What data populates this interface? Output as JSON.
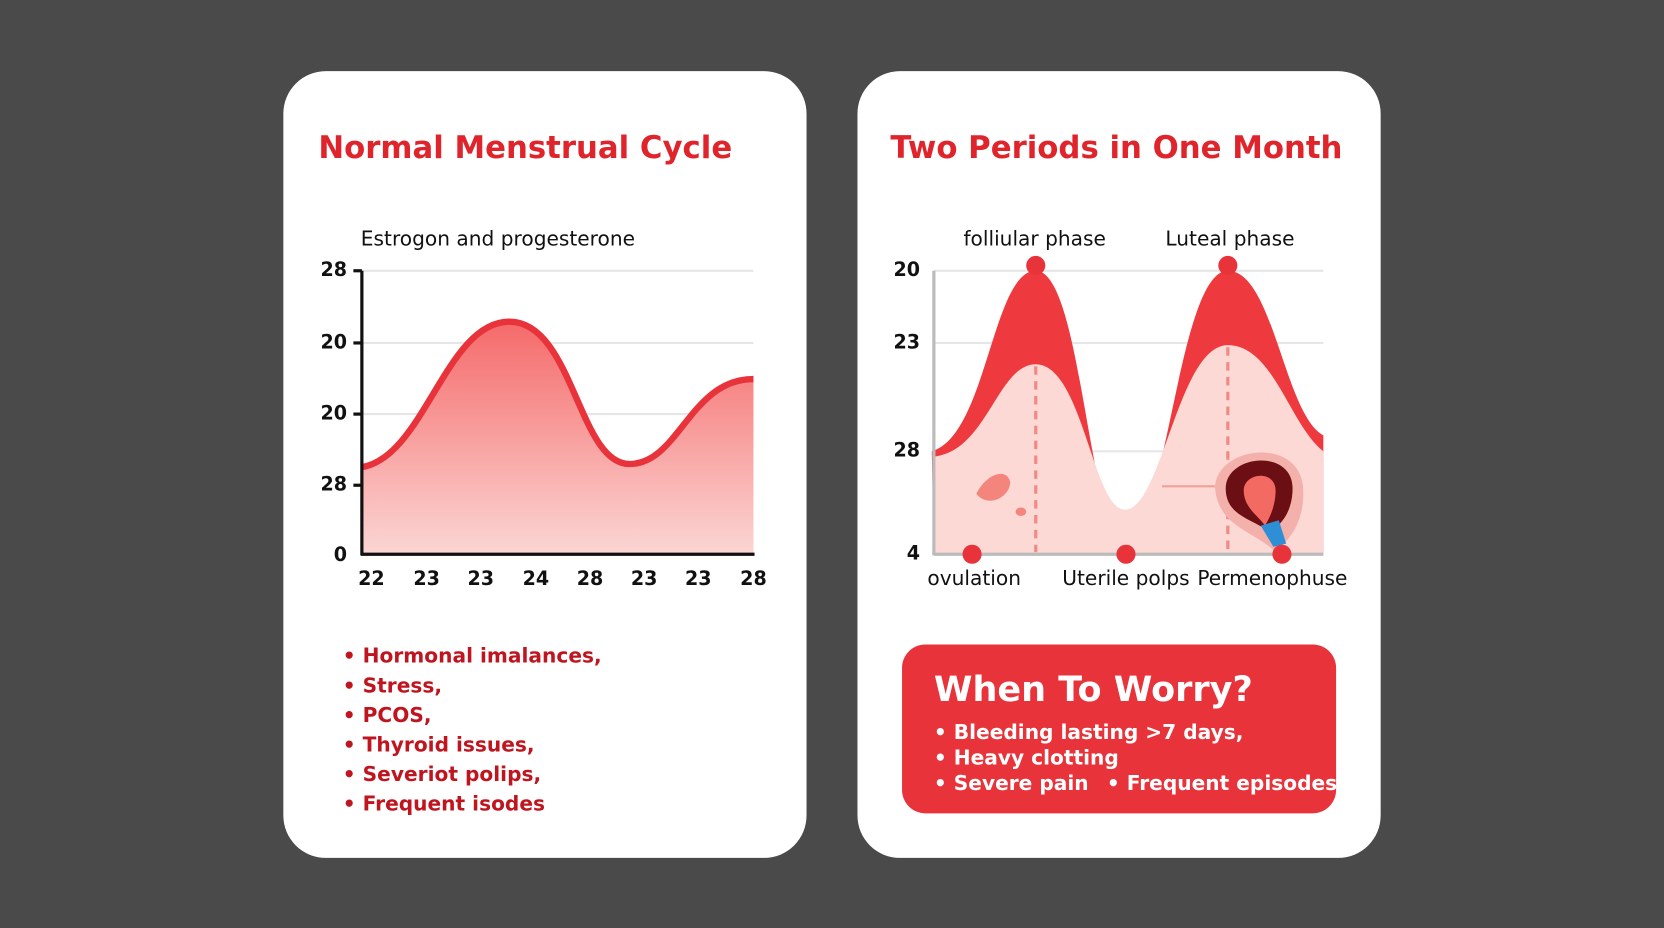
{
  "left_card": {
    "title": "Normal Menstrual Cycle",
    "chart_label": "Estrogon and progesterone",
    "y_labels": [
      "28",
      "20",
      "20",
      "28",
      "0"
    ],
    "x_labels": [
      "22",
      "23",
      "23",
      "24",
      "28",
      "23",
      "23",
      "28"
    ],
    "bullets": [
      "• Hormonal imalances,",
      "• Stress,",
      "• PCOS,",
      "• Thyroid issues,",
      "• Severiot polips,",
      "• Frequent isodes"
    ]
  },
  "right_card": {
    "title": "Two Periods in One Month",
    "phase_labels": [
      "folliular phase",
      "Luteal phase"
    ],
    "y_labels": [
      "20",
      "23",
      "28",
      "4"
    ],
    "bottom_labels": [
      "ovulation",
      "Uterile polps",
      "Permenophuse"
    ],
    "worry": {
      "title": "When To Worry?",
      "items": [
        "• Bleeding lasting >7 days,",
        "• Heavy clotting",
        "• Severe pain",
        "• Frequent episodes."
      ]
    }
  }
}
